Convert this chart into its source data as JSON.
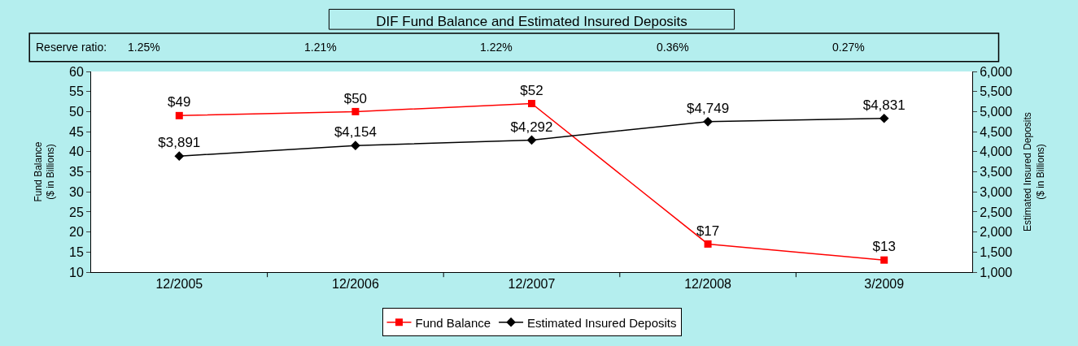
{
  "chart_data": {
    "type": "line",
    "title": "DIF Fund Balance and Estimated Insured Deposits",
    "ylabel": "Fund Balance\n($ in Billions)",
    "y2label": "Estimated Insured Deposits\n($ in Billions)",
    "categories": [
      "12/2005",
      "12/2006",
      "12/2007",
      "12/2008",
      "3/2009"
    ],
    "series": [
      {
        "name": "Fund Balance",
        "color": "#ff0000",
        "marker": "square",
        "values": [
          49,
          50,
          52,
          17,
          13
        ],
        "value_labels": [
          "$49",
          "$50",
          "$52",
          "$17",
          "$13"
        ]
      },
      {
        "name": "Estimated Insured Deposits",
        "color": "#000000",
        "marker": "diamond",
        "axis": "y2",
        "values": [
          3891,
          4154,
          4292,
          4749,
          4831
        ],
        "value_labels": [
          "$3,891",
          "$4,154",
          "$4,292",
          "$4,749",
          "$4,831"
        ]
      }
    ],
    "ylim": [
      10,
      60
    ],
    "yticks": [
      10,
      15,
      20,
      25,
      30,
      35,
      40,
      45,
      50,
      55,
      60
    ],
    "y2lim": [
      1000,
      6000
    ],
    "y2ticks": [
      {
        "value": 1000,
        "label": "1,000"
      },
      {
        "value": 1500,
        "label": "1,500"
      },
      {
        "value": 2000,
        "label": "2,000"
      },
      {
        "value": 2500,
        "label": "2,500"
      },
      {
        "value": 3000,
        "label": "3,000"
      },
      {
        "value": 3500,
        "label": "3,500"
      },
      {
        "value": 4000,
        "label": "4,000"
      },
      {
        "value": 4500,
        "label": "4,500"
      },
      {
        "value": 5000,
        "label": "5,000"
      },
      {
        "value": 5500,
        "label": "5,500"
      },
      {
        "value": 6000,
        "label": "6,000"
      }
    ],
    "annotations": [
      "Reserve ratio:",
      "1.25%",
      "1.21%",
      "1.22%",
      "0.36%",
      "0.27%"
    ],
    "legend": "bottom"
  }
}
